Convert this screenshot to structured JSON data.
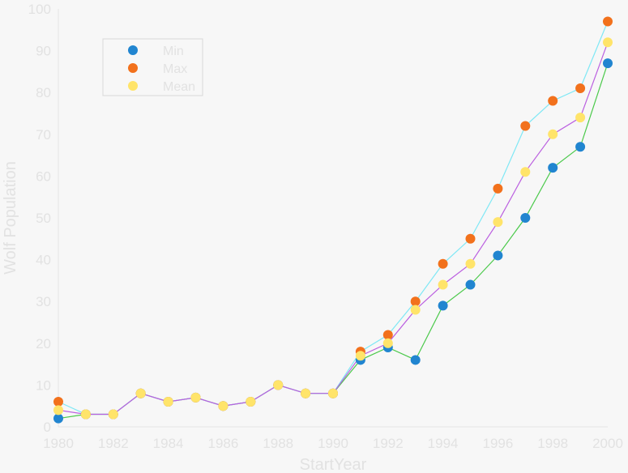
{
  "chart_data": {
    "type": "scatter",
    "xlabel": "StartYear",
    "ylabel": "Wolf Population",
    "xlim": [
      1980,
      2000
    ],
    "ylim": [
      0,
      100
    ],
    "xticks": [
      1980,
      1982,
      1984,
      1986,
      1988,
      1990,
      1992,
      1994,
      1996,
      1998,
      2000
    ],
    "yticks": [
      0,
      10,
      20,
      30,
      40,
      50,
      60,
      70,
      80,
      90,
      100
    ],
    "legend_position": "top-left",
    "grid": false,
    "series": [
      {
        "name": "Min",
        "marker_color": "#2185d0",
        "line_color": "#4ac94a",
        "x": [
          1980,
          1981,
          1982,
          1983,
          1984,
          1985,
          1986,
          1987,
          1988,
          1989,
          1990,
          1991,
          1992,
          1993,
          1994,
          1995,
          1996,
          1997,
          1998,
          1999,
          2000
        ],
        "values": [
          2,
          3,
          3,
          8,
          6,
          7,
          5,
          6,
          10,
          8,
          8,
          16,
          19,
          16,
          29,
          34,
          41,
          50,
          62,
          67,
          87
        ]
      },
      {
        "name": "Max",
        "marker_color": "#f2711c",
        "line_color": "#7fe8f5",
        "x": [
          1980,
          1981,
          1982,
          1983,
          1984,
          1985,
          1986,
          1987,
          1988,
          1989,
          1990,
          1991,
          1992,
          1993,
          1994,
          1995,
          1996,
          1997,
          1998,
          1999,
          2000
        ],
        "values": [
          6,
          3,
          3,
          8,
          6,
          7,
          5,
          6,
          10,
          8,
          8,
          18,
          22,
          30,
          39,
          45,
          57,
          72,
          78,
          81,
          97
        ]
      },
      {
        "name": "Mean",
        "marker_color": "#ffe46a",
        "line_color": "#bb5fe0",
        "x": [
          1980,
          1981,
          1982,
          1983,
          1984,
          1985,
          1986,
          1987,
          1988,
          1989,
          1990,
          1991,
          1992,
          1993,
          1994,
          1995,
          1996,
          1997,
          1998,
          1999,
          2000
        ],
        "values": [
          4,
          3,
          3,
          8,
          6,
          7,
          5,
          6,
          10,
          8,
          8,
          17,
          20,
          28,
          34,
          39,
          49,
          61,
          70,
          74,
          92
        ]
      }
    ]
  }
}
